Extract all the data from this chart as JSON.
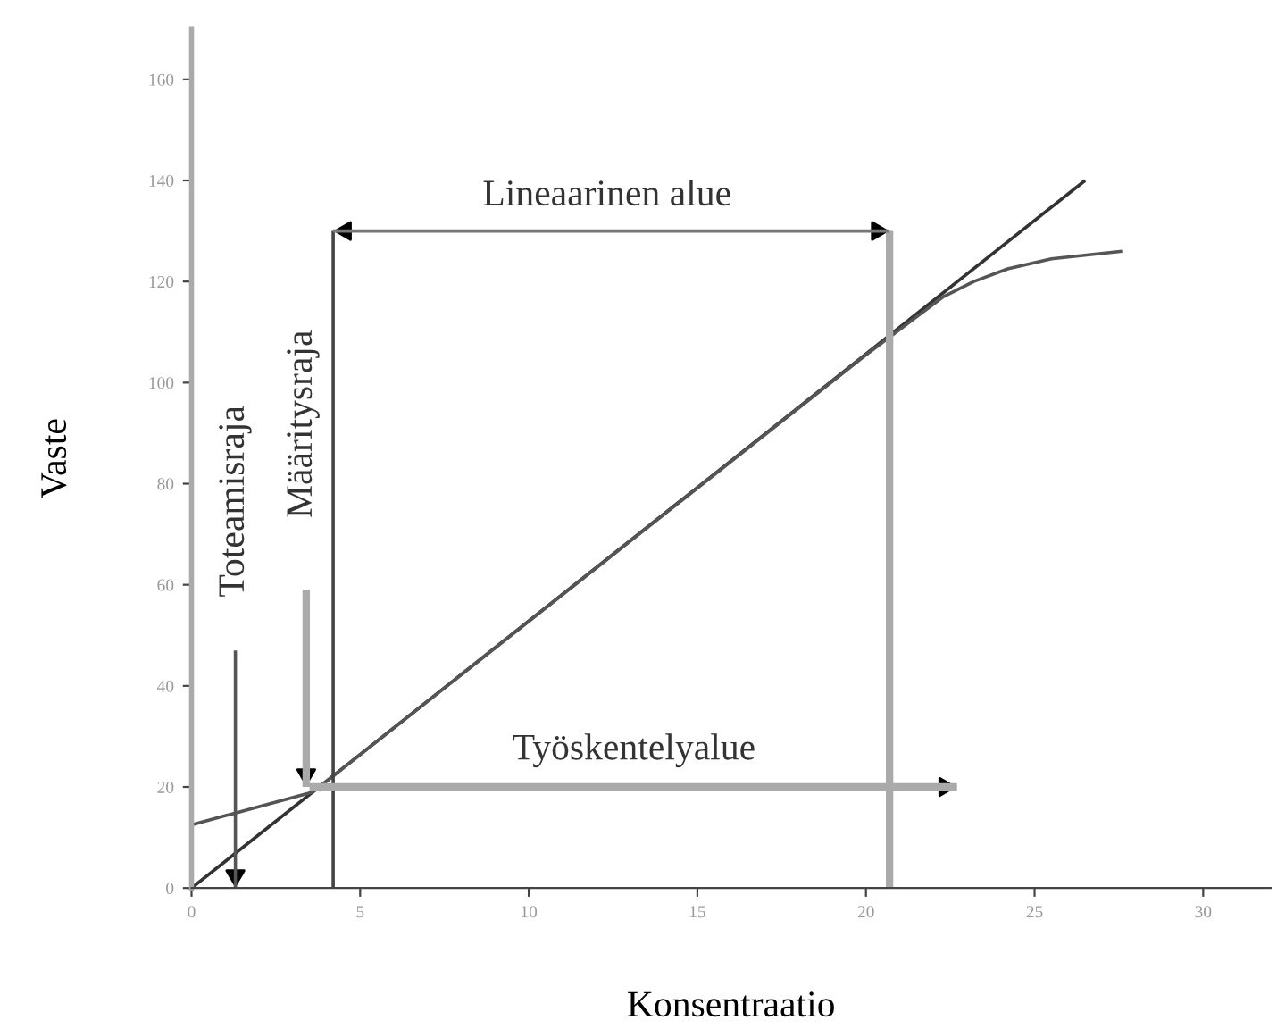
{
  "chart_data": {
    "type": "line",
    "xlabel": "Konsentraatio",
    "ylabel": "Vaste",
    "xlim": [
      0,
      32
    ],
    "ylim": [
      0,
      170
    ],
    "xticks": [
      0,
      5,
      10,
      15,
      20,
      25,
      30
    ],
    "yticks": [
      0,
      20,
      40,
      60,
      80,
      100,
      120,
      140,
      160
    ],
    "grid": false,
    "legend": false,
    "series": [
      {
        "color": "#333333",
        "x": [
          0,
          26.5
        ],
        "values": [
          0,
          140
        ]
      },
      {
        "color": "#555555",
        "x": [
          0,
          3.6,
          20,
          22.3,
          23.2,
          24.2,
          25.5,
          27.6
        ],
        "values": [
          12.5,
          19,
          105.5,
          117,
          120,
          122.5,
          124.5,
          126
        ]
      },
      {
        "color": "#444444",
        "x": [
          4.2,
          4.2
        ],
        "values": [
          0,
          130
        ]
      },
      {
        "color": "#aaaaaa",
        "x": [
          20.7,
          20.7
        ],
        "values": [
          0,
          130
        ]
      },
      {
        "color": "#777777",
        "x": [
          4.2,
          20.7
        ],
        "values": [
          130,
          130
        ]
      },
      {
        "color": "#aaaaaa",
        "x": [
          3.5,
          22.7
        ],
        "values": [
          20,
          20
        ]
      },
      {
        "color": "#555555",
        "x": [
          1.3,
          1.3
        ],
        "values": [
          47,
          0
        ]
      },
      {
        "color": "#aaaaaa",
        "x": [
          3.4,
          3.4
        ],
        "values": [
          59,
          20
        ]
      }
    ],
    "annotations": [
      "Lineaarinen alue",
      "Työskentelyalue",
      "Toteamisraja",
      "Määritysraja"
    ]
  }
}
